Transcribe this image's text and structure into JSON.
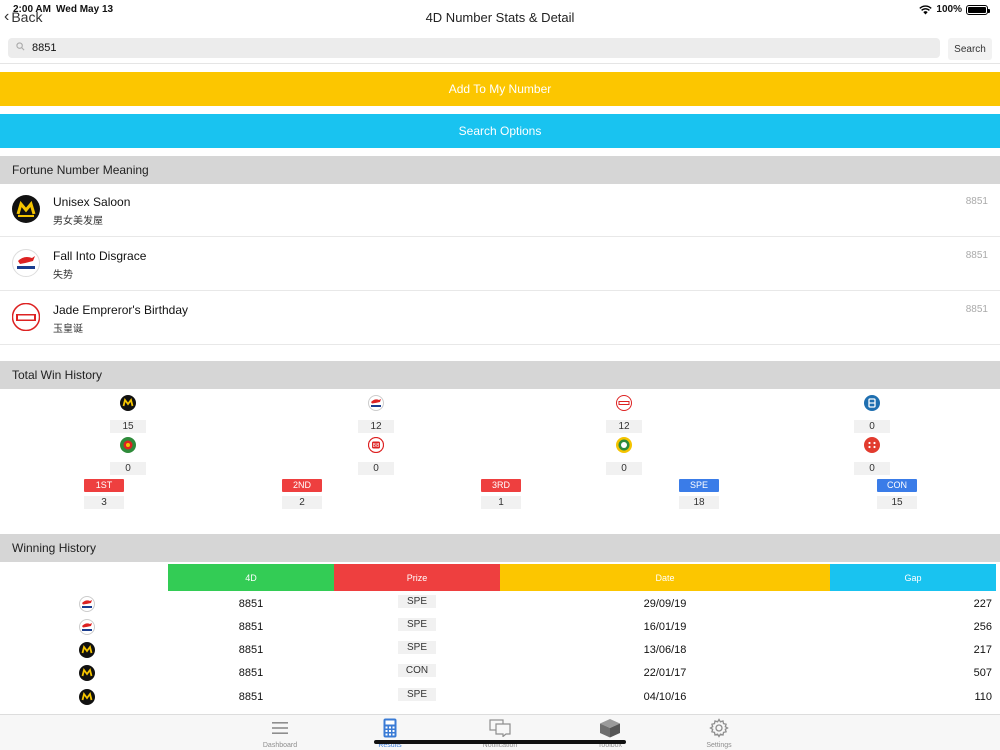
{
  "status": {
    "time": "2:00 AM",
    "date": "Wed May 13",
    "battery": "100%"
  },
  "nav": {
    "back_label": "Back",
    "title": "4D Number Stats & Detail"
  },
  "search": {
    "value": "8851",
    "button_label": "Search"
  },
  "buttons": {
    "add": "Add To My Number",
    "options": "Search Options"
  },
  "meaning": {
    "title": "Fortune Number Meaning",
    "items": [
      {
        "operator": "magnum",
        "en": "Unisex Saloon",
        "zh": "男女美发屋",
        "number": "8851"
      },
      {
        "operator": "damacai",
        "en": "Fall Into Disgrace",
        "zh": "失势",
        "number": "8851"
      },
      {
        "operator": "toto",
        "en": "Jade Empreror's Birthday",
        "zh": "玉皇诞",
        "number": "8851"
      }
    ]
  },
  "total_win": {
    "title": "Total Win History",
    "operators": [
      {
        "icon": "magnum-logo-icon",
        "count": "15"
      },
      {
        "icon": "damacai-logo-icon",
        "count": "12"
      },
      {
        "icon": "toto-logo-icon",
        "count": "12"
      },
      {
        "icon": "singapore-pools-logo-icon",
        "count": "0"
      },
      {
        "icon": "sabah-lotto-logo-icon",
        "count": "0"
      },
      {
        "icon": "sandakan-88-logo-icon",
        "count": "0"
      },
      {
        "icon": "cashsweep-logo-icon",
        "count": "0"
      },
      {
        "icon": "special-cashsweep-logo-icon",
        "count": "0"
      }
    ],
    "prizes": [
      {
        "label": "1ST",
        "color": "#ee3f3f",
        "count": "3"
      },
      {
        "label": "2ND",
        "color": "#ee3f3f",
        "count": "2"
      },
      {
        "label": "3RD",
        "color": "#ee3f3f",
        "count": "1"
      },
      {
        "label": "SPE",
        "color": "#3a7ce8",
        "count": "18"
      },
      {
        "label": "CON",
        "color": "#3a7ce8",
        "count": "15"
      }
    ]
  },
  "history": {
    "title": "Winning History",
    "headers": {
      "fourd": "4D",
      "prize": "Prize",
      "date": "Date",
      "gap": "Gap"
    },
    "colors": {
      "fourd": "#33cc55",
      "prize": "#ee3f3f",
      "date": "#fcc600",
      "gap": "#19c3f0"
    },
    "rows": [
      {
        "operator": "damacai",
        "number": "8851",
        "prize": "SPE",
        "date": "29/09/19",
        "gap": "227"
      },
      {
        "operator": "damacai",
        "number": "8851",
        "prize": "SPE",
        "date": "16/01/19",
        "gap": "256"
      },
      {
        "operator": "magnum",
        "number": "8851",
        "prize": "SPE",
        "date": "13/06/18",
        "gap": "217"
      },
      {
        "operator": "magnum",
        "number": "8851",
        "prize": "CON",
        "date": "22/01/17",
        "gap": "507"
      },
      {
        "operator": "magnum",
        "number": "8851",
        "prize": "SPE",
        "date": "04/10/16",
        "gap": "110"
      }
    ]
  },
  "tabs": [
    {
      "label": "Dashboard",
      "icon": "menu-icon",
      "active": false
    },
    {
      "label": "Results",
      "icon": "calculator-icon",
      "active": true
    },
    {
      "label": "Notification",
      "icon": "chat-icon",
      "active": false
    },
    {
      "label": "Toolbox",
      "icon": "box-icon",
      "active": false
    },
    {
      "label": "Settings",
      "icon": "gear-icon",
      "active": false
    }
  ]
}
